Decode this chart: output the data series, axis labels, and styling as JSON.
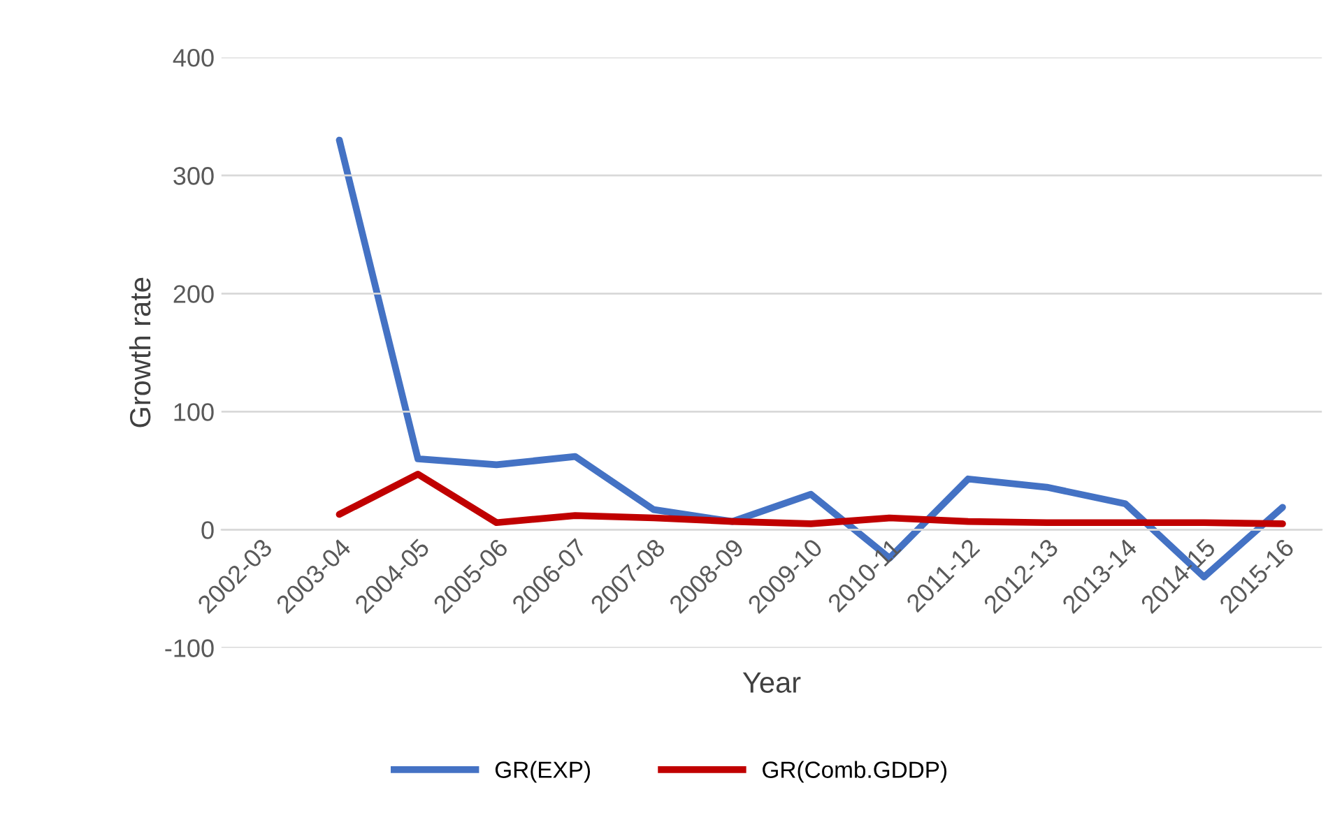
{
  "chart_data": {
    "type": "line",
    "xlabel": "Year",
    "ylabel": "Growth rate",
    "categories": [
      "2002-03",
      "2003-04",
      "2004-05",
      "2005-06",
      "2006-07",
      "2007-08",
      "2008-09",
      "2009-10",
      "2010-11",
      "2011-12",
      "2012-13",
      "2013-14",
      "2014-15",
      "2015-16"
    ],
    "series": [
      {
        "name": "GR(EXP)",
        "color": "#4472c4",
        "values": [
          null,
          330,
          60,
          55,
          62,
          17,
          7,
          30,
          -24,
          43,
          36,
          22,
          -40,
          19
        ]
      },
      {
        "name": "GR(Comb.GDDP)",
        "color": "#c00000",
        "values": [
          null,
          13,
          47,
          6,
          12,
          10,
          7,
          5,
          10,
          7,
          6,
          6,
          6,
          5
        ]
      }
    ],
    "ylim": [
      -100,
      400
    ],
    "yticks": [
      -100,
      0,
      100,
      200,
      300,
      400
    ],
    "grid": "y",
    "legend": "bottom",
    "marker": "none",
    "line_style": "solid"
  }
}
